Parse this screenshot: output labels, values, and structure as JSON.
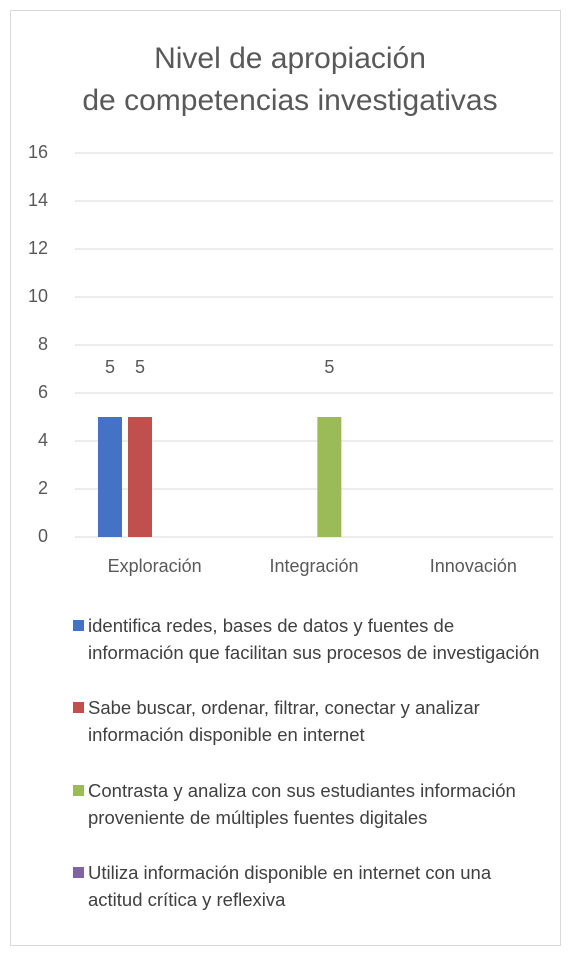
{
  "chart_data": {
    "type": "bar",
    "title": "Nivel de apropiación de competencias investigativas",
    "categories": [
      "Exploración",
      "Integración",
      "Innovación"
    ],
    "series": [
      {
        "name": "identifica redes, bases de datos y fuentes de información que facilitan sus procesos de investigación",
        "color": "#4472c4",
        "values": [
          5,
          null,
          null
        ]
      },
      {
        "name": "Sabe buscar, ordenar, filtrar, conectar y analizar información disponible en internet",
        "color": "#c0504d",
        "values": [
          5,
          null,
          null
        ]
      },
      {
        "name": "Contrasta y analiza con sus estudiantes información proveniente de múltiples fuentes digitales",
        "color": "#9bbb59",
        "values": [
          null,
          5,
          null
        ]
      },
      {
        "name": "Utiliza información disponible en internet con una actitud crítica y reflexiva",
        "color": "#8064a2",
        "values": [
          null,
          null,
          null
        ]
      }
    ],
    "ylim": [
      0,
      16
    ],
    "yticks": [
      0,
      2,
      4,
      6,
      8,
      10,
      12,
      14,
      16
    ],
    "grid": true,
    "legend": "bottom"
  }
}
